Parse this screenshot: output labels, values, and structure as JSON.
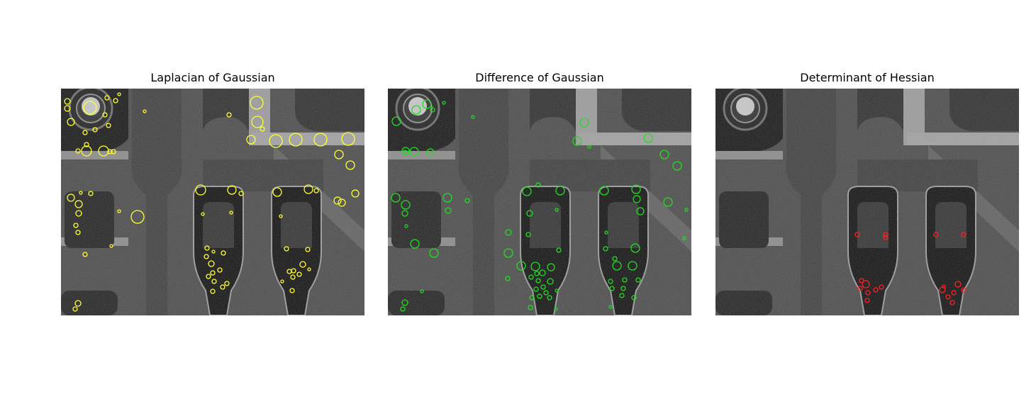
{
  "figure": {
    "panels": [
      {
        "title": "Laplacian of Gaussian",
        "marker_color": "#ffff33"
      },
      {
        "title": "Difference of Gaussian",
        "marker_color": "#22dd22"
      },
      {
        "title": "Determinant of Hessian",
        "marker_color": "#ff2020"
      }
    ]
  }
}
